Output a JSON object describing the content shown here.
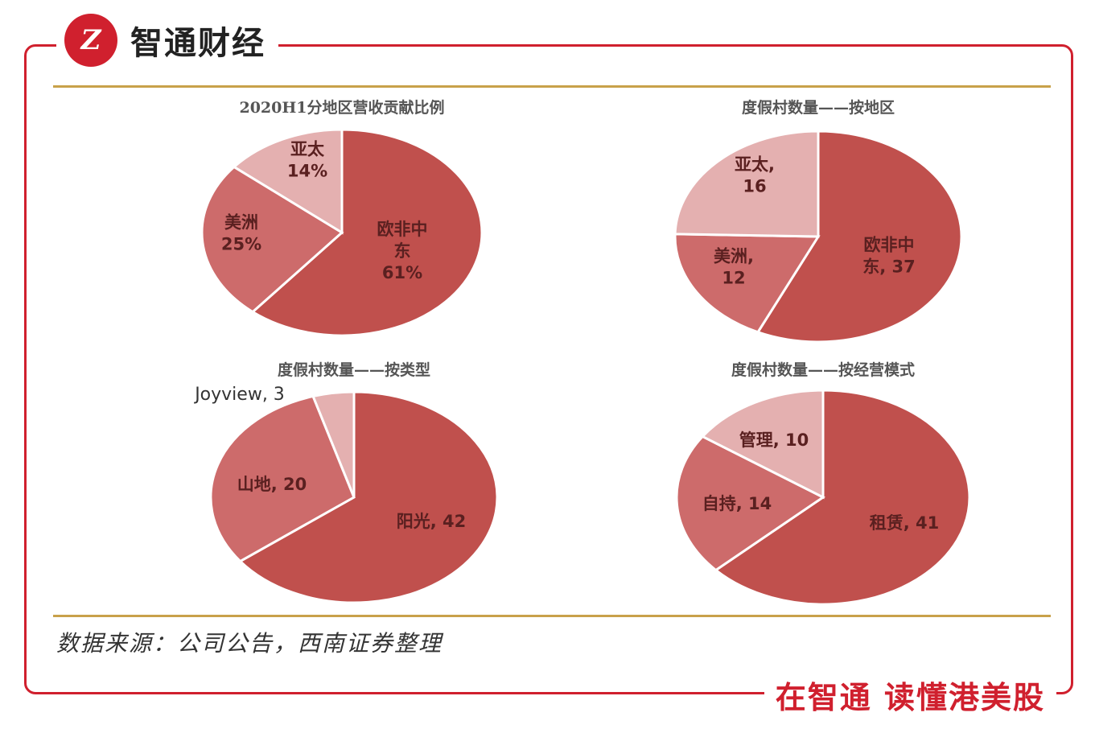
{
  "brand": {
    "logo_text": "Z",
    "name": "智通财经"
  },
  "footer": {
    "source": "数据来源：公司公告，西南证券整理",
    "slogan": "在智通 读懂港美股"
  },
  "colors": {
    "dark": "#c0504d",
    "mid": "#cd6b6b",
    "light": "#e4b0b0",
    "accent": "#d0202e",
    "rule": "#c8a14a"
  },
  "chart_data": [
    {
      "type": "pie",
      "title": "2020H1分地区营收贡献比例",
      "slices": [
        {
          "label_lines": [
            "欧非中",
            "东",
            "61%"
          ],
          "value": 61,
          "color": "dark"
        },
        {
          "label_lines": [
            "美洲",
            "25%"
          ],
          "value": 25,
          "color": "mid"
        },
        {
          "label_lines": [
            "亚太",
            "14%"
          ],
          "value": 14,
          "color": "light"
        }
      ]
    },
    {
      "type": "pie",
      "title": "度假村数量——按地区",
      "slices": [
        {
          "label_lines": [
            "欧非中",
            "东, 37"
          ],
          "value": 37,
          "color": "dark"
        },
        {
          "label_lines": [
            "美洲,",
            "12"
          ],
          "value": 12,
          "color": "mid"
        },
        {
          "label_lines": [
            "亚太,",
            "16"
          ],
          "value": 16,
          "color": "light"
        }
      ]
    },
    {
      "type": "pie",
      "title": "度假村数量——按类型",
      "slices": [
        {
          "label_lines": [
            "阳光, 42"
          ],
          "value": 42,
          "color": "dark"
        },
        {
          "label_lines": [
            "山地, 20"
          ],
          "value": 20,
          "color": "mid"
        },
        {
          "label_lines": [
            "Joyview, 3"
          ],
          "value": 3,
          "color": "light",
          "outside": true
        }
      ]
    },
    {
      "type": "pie",
      "title": "度假村数量——按经营模式",
      "slices": [
        {
          "label_lines": [
            "租赁, 41"
          ],
          "value": 41,
          "color": "dark"
        },
        {
          "label_lines": [
            "自持, 14"
          ],
          "value": 14,
          "color": "mid"
        },
        {
          "label_lines": [
            "管理, 10"
          ],
          "value": 10,
          "color": "light"
        }
      ]
    }
  ]
}
